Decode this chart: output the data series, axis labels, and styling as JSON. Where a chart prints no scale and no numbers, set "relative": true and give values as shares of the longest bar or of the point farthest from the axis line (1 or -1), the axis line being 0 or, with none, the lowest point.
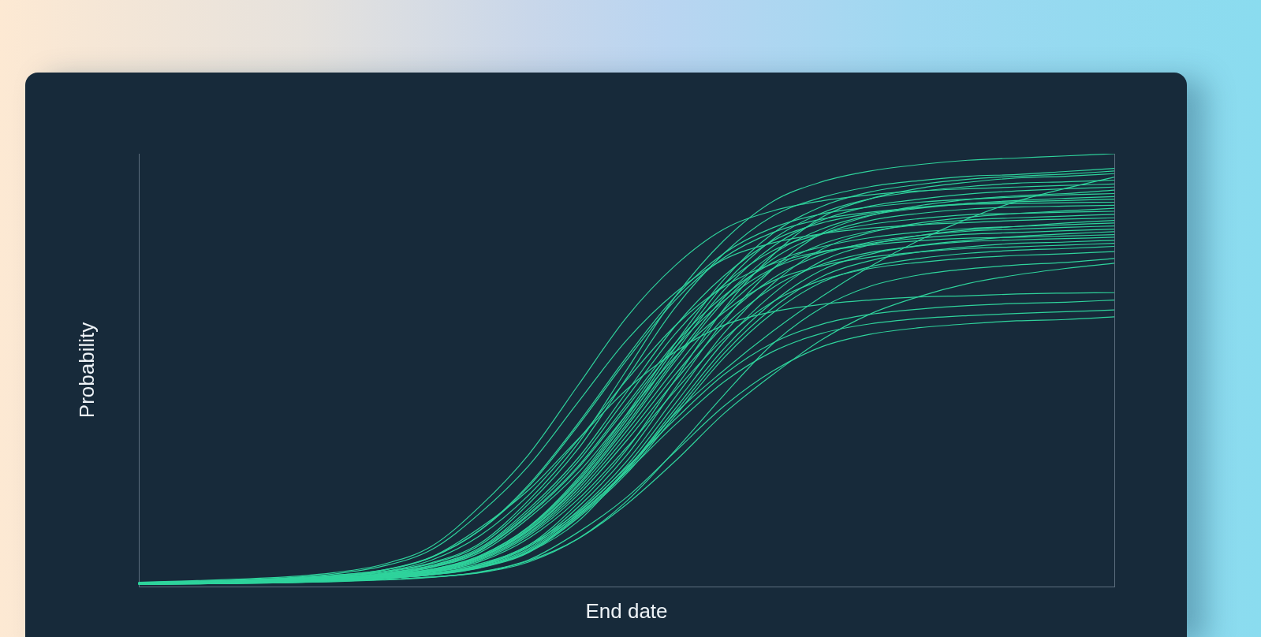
{
  "chart_data": {
    "type": "line",
    "xlabel": "End date",
    "ylabel": "Probability",
    "relative": true,
    "categories": [
      null,
      null,
      null,
      null,
      null,
      null,
      null,
      null,
      null,
      null,
      null,
      null,
      null,
      null,
      null,
      null,
      null,
      null,
      null,
      null,
      null
    ],
    "series": [
      {
        "color": "#2fd39c",
        "values": [
          0.009,
          0.011,
          0.014,
          0.018,
          0.024,
          0.034,
          0.055,
          0.1,
          0.2,
          0.33,
          0.5,
          0.67,
          0.8,
          0.89,
          0.935,
          0.96,
          0.975,
          0.985,
          0.99,
          0.995,
          1
        ]
      },
      {
        "color": "#2fd39c",
        "values": [
          0.009,
          0.011,
          0.013,
          0.017,
          0.023,
          0.033,
          0.053,
          0.096,
          0.192,
          0.317,
          0.481,
          0.645,
          0.77,
          0.856,
          0.899,
          0.924,
          0.938,
          0.948,
          0.952,
          0.959,
          0.966
        ]
      },
      {
        "color": "#2fd39c",
        "values": [
          0.008,
          0.01,
          0.012,
          0.015,
          0.02,
          0.028,
          0.04,
          0.072,
          0.139,
          0.25,
          0.398,
          0.562,
          0.71,
          0.816,
          0.878,
          0.912,
          0.929,
          0.941,
          0.948,
          0.953,
          0.96
        ]
      },
      {
        "color": "#2fd39c",
        "values": [
          0.008,
          0.009,
          0.011,
          0.013,
          0.017,
          0.023,
          0.033,
          0.053,
          0.096,
          0.192,
          0.316,
          0.479,
          0.642,
          0.766,
          0.853,
          0.896,
          0.92,
          0.934,
          0.944,
          0.948,
          0.954
        ]
      },
      {
        "color": "#2fd39c",
        "values": [
          0.006,
          0.007,
          0.009,
          0.011,
          0.014,
          0.019,
          0.028,
          0.045,
          0.08,
          0.15,
          0.27,
          0.4,
          0.5,
          0.59,
          0.67,
          0.74,
          0.8,
          0.85,
          0.89,
          0.92,
          0.946
        ]
      },
      {
        "color": "#2fd39c",
        "values": [
          0.008,
          0.009,
          0.012,
          0.015,
          0.02,
          0.027,
          0.04,
          0.071,
          0.137,
          0.245,
          0.391,
          0.552,
          0.698,
          0.802,
          0.863,
          0.896,
          0.913,
          0.924,
          0.932,
          0.935,
          0.939
        ]
      },
      {
        "color": "#2fd39c",
        "values": [
          0.01,
          0.013,
          0.017,
          0.022,
          0.032,
          0.051,
          0.093,
          0.186,
          0.306,
          0.464,
          0.622,
          0.742,
          0.826,
          0.868,
          0.891,
          0.905,
          0.914,
          0.919,
          0.923,
          0.927,
          0.93
        ]
      },
      {
        "color": "#2fd39c",
        "values": [
          0.008,
          0.009,
          0.012,
          0.015,
          0.019,
          0.027,
          0.039,
          0.069,
          0.134,
          0.241,
          0.384,
          0.541,
          0.685,
          0.786,
          0.846,
          0.879,
          0.895,
          0.907,
          0.914,
          0.919,
          0.923
        ]
      },
      {
        "color": "#2fd39c",
        "values": [
          0.007,
          0.008,
          0.01,
          0.013,
          0.017,
          0.022,
          0.031,
          0.05,
          0.092,
          0.183,
          0.303,
          0.459,
          0.614,
          0.734,
          0.816,
          0.857,
          0.88,
          0.894,
          0.903,
          0.908,
          0.916
        ]
      },
      {
        "color": "#2fd39c",
        "values": [
          0.009,
          0.011,
          0.014,
          0.019,
          0.026,
          0.038,
          0.068,
          0.131,
          0.236,
          0.376,
          0.53,
          0.67,
          0.77,
          0.829,
          0.861,
          0.877,
          0.888,
          0.895,
          0.9,
          0.905,
          0.908
        ]
      },
      {
        "color": "#2fd39c",
        "values": [
          0.008,
          0.009,
          0.011,
          0.014,
          0.019,
          0.026,
          0.038,
          0.068,
          0.131,
          0.235,
          0.375,
          0.528,
          0.668,
          0.768,
          0.826,
          0.858,
          0.874,
          0.885,
          0.892,
          0.897,
          0.901
        ]
      },
      {
        "color": "#2fd39c",
        "values": [
          0.008,
          0.01,
          0.013,
          0.016,
          0.022,
          0.031,
          0.049,
          0.09,
          0.18,
          0.296,
          0.449,
          0.602,
          0.718,
          0.799,
          0.84,
          0.862,
          0.876,
          0.885,
          0.889,
          0.892,
          0.895
        ]
      },
      {
        "color": "#2fd39c",
        "values": [
          0.009,
          0.011,
          0.014,
          0.019,
          0.026,
          0.038,
          0.067,
          0.13,
          0.232,
          0.371,
          0.523,
          0.662,
          0.76,
          0.818,
          0.849,
          0.865,
          0.876,
          0.883,
          0.885,
          0.887,
          0.888
        ]
      },
      {
        "color": "#2fd39c",
        "values": [
          0.008,
          0.009,
          0.011,
          0.014,
          0.019,
          0.026,
          0.037,
          0.067,
          0.129,
          0.231,
          0.369,
          0.521,
          0.659,
          0.757,
          0.814,
          0.846,
          0.862,
          0.872,
          0.877,
          0.879,
          0.881
        ]
      },
      {
        "color": "#2fd39c",
        "values": [
          0.007,
          0.008,
          0.01,
          0.012,
          0.016,
          0.021,
          0.03,
          0.048,
          0.088,
          0.175,
          0.289,
          0.438,
          0.586,
          0.7,
          0.779,
          0.818,
          0.84,
          0.853,
          0.862,
          0.868,
          0.874
        ]
      },
      {
        "color": "#2fd39c",
        "values": [
          0.008,
          0.01,
          0.012,
          0.016,
          0.021,
          0.03,
          0.048,
          0.087,
          0.174,
          0.288,
          0.436,
          0.584,
          0.698,
          0.776,
          0.815,
          0.837,
          0.85,
          0.859,
          0.862,
          0.865,
          0.867
        ]
      },
      {
        "color": "#2fd39c",
        "values": [
          0.007,
          0.009,
          0.011,
          0.014,
          0.018,
          0.025,
          0.036,
          0.065,
          0.125,
          0.225,
          0.359,
          0.505,
          0.639,
          0.734,
          0.791,
          0.821,
          0.836,
          0.847,
          0.852,
          0.856,
          0.86
        ]
      },
      {
        "color": "#2fd39c",
        "values": [
          0.009,
          0.012,
          0.015,
          0.02,
          0.029,
          0.047,
          0.085,
          0.17,
          0.28,
          0.425,
          0.569,
          0.679,
          0.756,
          0.794,
          0.815,
          0.828,
          0.836,
          0.841,
          0.846,
          0.849,
          0.852
        ]
      },
      {
        "color": "#2fd39c",
        "values": [
          0.007,
          0.008,
          0.009,
          0.012,
          0.015,
          0.02,
          0.029,
          0.046,
          0.085,
          0.169,
          0.279,
          0.423,
          0.566,
          0.676,
          0.752,
          0.79,
          0.811,
          0.824,
          0.832,
          0.84,
          0.846
        ]
      },
      {
        "color": "#2fd39c",
        "values": [
          0.008,
          0.009,
          0.012,
          0.015,
          0.02,
          0.029,
          0.046,
          0.084,
          0.168,
          0.277,
          0.42,
          0.563,
          0.672,
          0.748,
          0.785,
          0.806,
          0.819,
          0.827,
          0.832,
          0.836,
          0.84
        ]
      },
      {
        "color": "#2fd39c",
        "values": [
          0.007,
          0.008,
          0.01,
          0.013,
          0.018,
          0.024,
          0.035,
          0.063,
          0.122,
          0.218,
          0.348,
          0.49,
          0.62,
          0.712,
          0.767,
          0.796,
          0.811,
          0.821,
          0.826,
          0.83,
          0.833
        ]
      },
      {
        "color": "#2fd39c",
        "values": [
          0.007,
          0.009,
          0.012,
          0.015,
          0.02,
          0.028,
          0.045,
          0.083,
          0.165,
          0.273,
          0.413,
          0.553,
          0.661,
          0.735,
          0.772,
          0.793,
          0.805,
          0.814,
          0.818,
          0.822,
          0.826
        ]
      },
      {
        "color": "#2fd39c",
        "values": [
          0.007,
          0.007,
          0.009,
          0.011,
          0.015,
          0.02,
          0.028,
          0.045,
          0.082,
          0.164,
          0.271,
          0.411,
          0.55,
          0.657,
          0.731,
          0.768,
          0.788,
          0.8,
          0.809,
          0.815,
          0.82
        ]
      },
      {
        "color": "#2fd39c",
        "values": [
          0.008,
          0.01,
          0.013,
          0.017,
          0.024,
          0.034,
          0.061,
          0.118,
          0.212,
          0.338,
          0.477,
          0.603,
          0.693,
          0.746,
          0.774,
          0.789,
          0.799,
          0.805,
          0.807,
          0.81,
          0.813
        ]
      },
      {
        "color": "#2fd39c",
        "values": [
          0.007,
          0.008,
          0.01,
          0.013,
          0.017,
          0.024,
          0.034,
          0.061,
          0.118,
          0.211,
          0.337,
          0.476,
          0.602,
          0.691,
          0.744,
          0.772,
          0.787,
          0.797,
          0.801,
          0.804,
          0.807
        ]
      },
      {
        "color": "#2fd39c",
        "values": [
          0.006,
          0.007,
          0.009,
          0.011,
          0.014,
          0.019,
          0.027,
          0.044,
          0.081,
          0.161,
          0.266,
          0.403,
          0.539,
          0.644,
          0.716,
          0.753,
          0.773,
          0.785,
          0.793,
          0.796,
          0.8
        ]
      },
      {
        "color": "#2fd39c",
        "values": [
          0.007,
          0.009,
          0.011,
          0.014,
          0.019,
          0.027,
          0.044,
          0.079,
          0.159,
          0.262,
          0.397,
          0.531,
          0.634,
          0.706,
          0.741,
          0.761,
          0.773,
          0.781,
          0.785,
          0.789,
          0.793
        ]
      },
      {
        "color": "#2fd39c",
        "values": [
          0.006,
          0.007,
          0.009,
          0.011,
          0.014,
          0.019,
          0.027,
          0.043,
          0.079,
          0.158,
          0.261,
          0.395,
          0.529,
          0.632,
          0.703,
          0.739,
          0.758,
          0.77,
          0.777,
          0.781,
          0.786
        ]
      },
      {
        "color": "#2fd39c",
        "values": [
          0.007,
          0.008,
          0.01,
          0.012,
          0.016,
          0.022,
          0.033,
          0.058,
          0.112,
          0.201,
          0.321,
          0.453,
          0.573,
          0.658,
          0.708,
          0.735,
          0.749,
          0.759,
          0.765,
          0.769,
          0.774
        ]
      },
      {
        "color": "#2fd39c",
        "values": [
          0.005,
          0.006,
          0.008,
          0.009,
          0.012,
          0.016,
          0.022,
          0.032,
          0.057,
          0.11,
          0.197,
          0.315,
          0.443,
          0.561,
          0.644,
          0.694,
          0.72,
          0.734,
          0.743,
          0.749,
          0.758
        ]
      },
      {
        "color": "#2fd39c",
        "values": [
          0.005,
          0.006,
          0.007,
          0.009,
          0.012,
          0.016,
          0.022,
          0.033,
          0.06,
          0.11,
          0.19,
          0.29,
          0.4,
          0.49,
          0.57,
          0.63,
          0.67,
          0.7,
          0.72,
          0.735,
          0.747
        ]
      },
      {
        "color": "#2fd39c",
        "values": [
          0.007,
          0.01,
          0.012,
          0.016,
          0.023,
          0.037,
          0.068,
          0.136,
          0.224,
          0.34,
          0.455,
          0.543,
          0.604,
          0.635,
          0.652,
          0.662,
          0.669,
          0.672,
          0.676,
          0.678,
          0.679
        ]
      },
      {
        "color": "#2fd39c",
        "values": [
          0.006,
          0.007,
          0.008,
          0.011,
          0.014,
          0.019,
          0.028,
          0.05,
          0.096,
          0.172,
          0.275,
          0.387,
          0.49,
          0.563,
          0.606,
          0.629,
          0.641,
          0.649,
          0.654,
          0.657,
          0.662
        ]
      },
      {
        "color": "#2fd39c",
        "values": [
          0.005,
          0.006,
          0.008,
          0.01,
          0.013,
          0.019,
          0.027,
          0.048,
          0.093,
          0.166,
          0.265,
          0.374,
          0.473,
          0.543,
          0.585,
          0.607,
          0.619,
          0.626,
          0.631,
          0.635,
          0.639
        ]
      },
      {
        "color": "#2fd39c",
        "values": [
          0.005,
          0.006,
          0.007,
          0.009,
          0.011,
          0.015,
          0.021,
          0.034,
          0.062,
          0.125,
          0.206,
          0.312,
          0.417,
          0.498,
          0.554,
          0.583,
          0.598,
          0.607,
          0.614,
          0.617,
          0.623
        ]
      }
    ]
  }
}
